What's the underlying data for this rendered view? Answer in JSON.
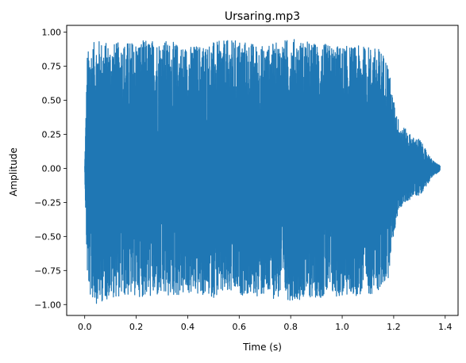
{
  "chart_data": {
    "type": "line",
    "title": "Ursaring.mp3",
    "xlabel": "Time (s)",
    "ylabel": "Amplitude",
    "xlim": [
      -0.07,
      1.45
    ],
    "ylim": [
      -1.08,
      1.05
    ],
    "xticks": [
      "0.0",
      "0.2",
      "0.4",
      "0.6",
      "0.8",
      "1.0",
      "1.2",
      "1.4"
    ],
    "xtick_values": [
      0.0,
      0.2,
      0.4,
      0.6,
      0.8,
      1.0,
      1.2,
      1.4
    ],
    "yticks": [
      "−1.00",
      "−0.75",
      "−0.50",
      "−0.25",
      "0.00",
      "0.25",
      "0.50",
      "0.75",
      "1.00"
    ],
    "ytick_values": [
      -1.0,
      -0.75,
      -0.5,
      -0.25,
      0.0,
      0.25,
      0.5,
      0.75,
      1.0
    ],
    "grid": false,
    "series": [
      {
        "color": "#1f77b4",
        "envelope_t": [
          0.0,
          0.005,
          0.01,
          0.02,
          0.05,
          0.1,
          0.2,
          0.3,
          0.4,
          0.5,
          0.6,
          0.7,
          0.8,
          0.9,
          1.0,
          1.1,
          1.15,
          1.18,
          1.19,
          1.2,
          1.22,
          1.25,
          1.28,
          1.3,
          1.32,
          1.35,
          1.38
        ],
        "envelope_max": [
          0.02,
          0.45,
          0.85,
          0.9,
          0.95,
          0.92,
          0.94,
          0.95,
          0.9,
          0.93,
          0.95,
          0.9,
          0.96,
          0.92,
          0.9,
          0.9,
          0.88,
          0.78,
          0.6,
          0.5,
          0.35,
          0.28,
          0.22,
          0.22,
          0.15,
          0.06,
          0.02
        ],
        "envelope_min": [
          -0.02,
          -0.45,
          -0.8,
          -0.95,
          -1.0,
          -0.95,
          -0.94,
          -0.96,
          -0.93,
          -0.95,
          -0.93,
          -0.95,
          -0.97,
          -0.95,
          -0.95,
          -0.93,
          -0.9,
          -0.8,
          -0.6,
          -0.5,
          -0.3,
          -0.25,
          -0.2,
          -0.2,
          -0.15,
          -0.06,
          -0.02
        ]
      }
    ]
  }
}
